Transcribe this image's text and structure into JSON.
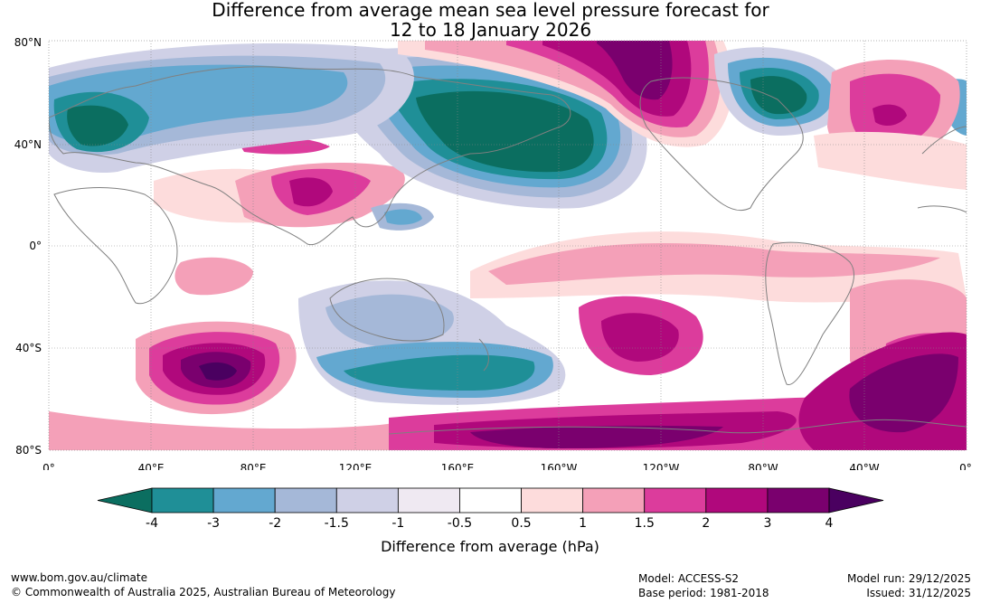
{
  "title": {
    "line1": "Difference from average mean sea level pressure forecast for",
    "line2": "12 to 18 January 2026"
  },
  "map": {
    "lat_labels": [
      "80°N",
      "40°N",
      "0°",
      "40°S",
      "80°S"
    ],
    "lon_labels": [
      "0°",
      "40°E",
      "80°E",
      "120°E",
      "160°E",
      "160°W",
      "120°W",
      "80°W",
      "40°W",
      "0°"
    ]
  },
  "colorbar": {
    "label": "Difference from average (hPa)",
    "ticks": [
      "-4",
      "-3",
      "-2",
      "-1.5",
      "-1",
      "-0.5",
      "0.5",
      "1",
      "1.5",
      "2",
      "3",
      "4"
    ],
    "colors": [
      "#0b6e60",
      "#1f8f97",
      "#63a8d0",
      "#a5b8d8",
      "#cfd0e6",
      "#efe9f2",
      "#ffffff",
      "#fddcdc",
      "#f4a0b8",
      "#dc3c9c",
      "#b0087c",
      "#7a006e",
      "#4a0060"
    ]
  },
  "footer": {
    "website": "www.bom.gov.au/climate",
    "copyright": "© Commonwealth of Australia 2025, Australian Bureau of Meteorology",
    "model": "Model: ACCESS-S2",
    "base_period": "Base period: 1981-2018",
    "model_run": "Model run: 29/12/2025",
    "issued": "Issued: 31/12/2025"
  }
}
